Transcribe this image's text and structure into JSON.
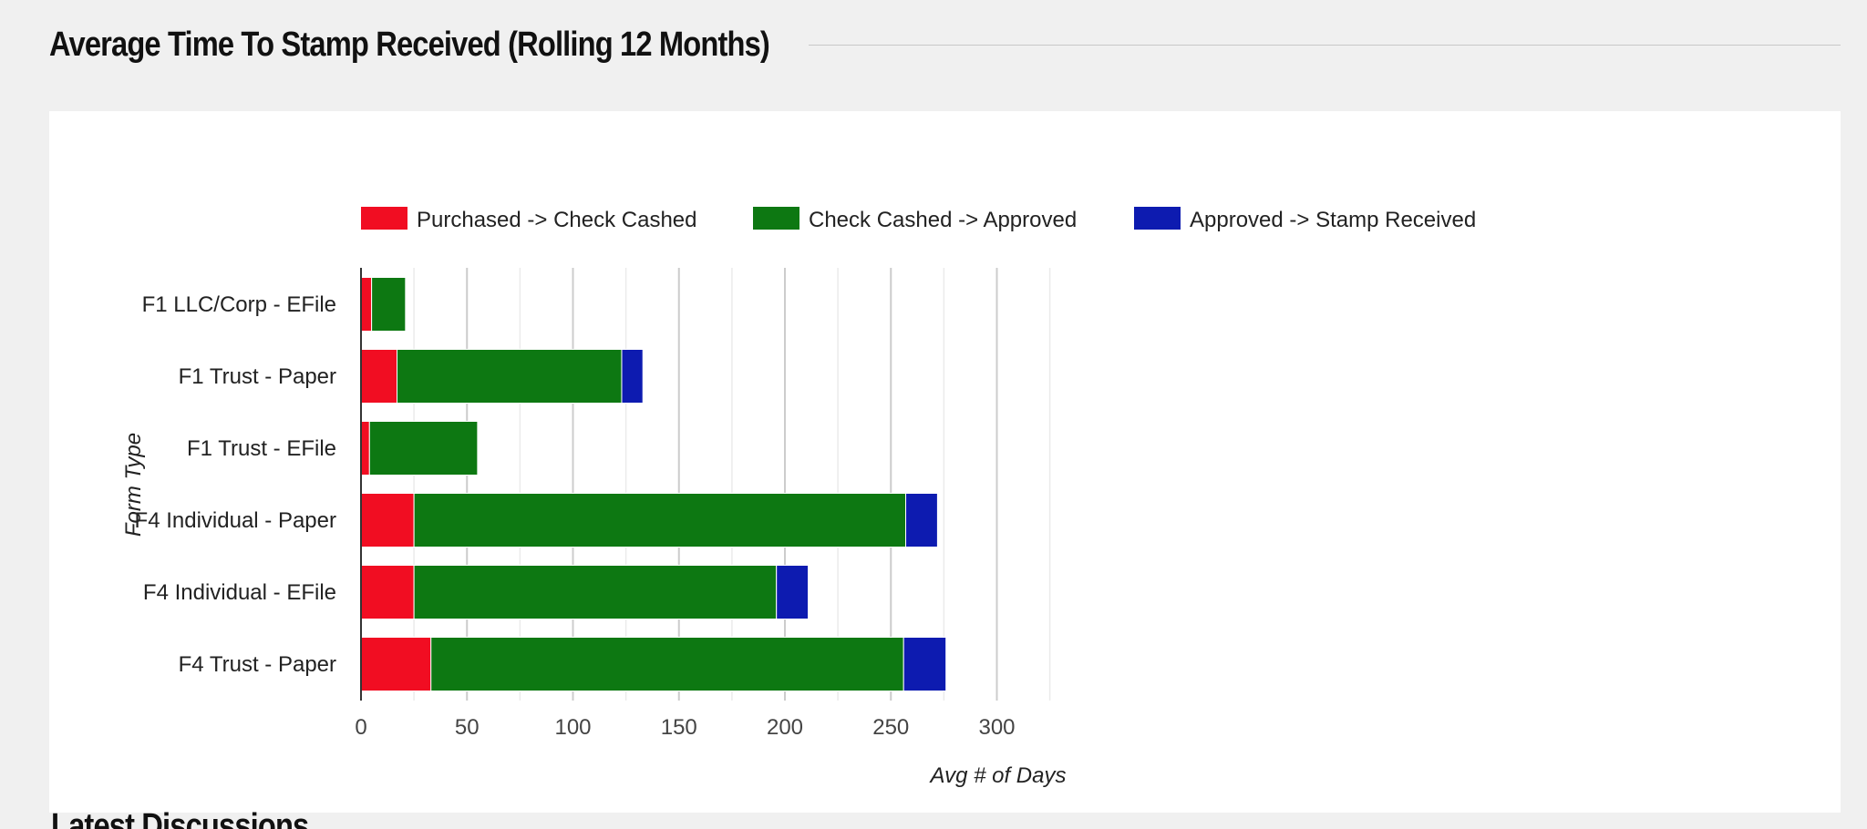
{
  "page": {
    "section_title": "Average Time To Stamp Received (Rolling 12 Months)",
    "next_section_title": "Latest Discussions"
  },
  "chart_data": {
    "type": "bar",
    "orientation": "horizontal",
    "stacked": true,
    "title": "",
    "xlabel": "Avg # of Days",
    "ylabel": "Form Type",
    "xlim": [
      0,
      340
    ],
    "xticks": [
      0,
      50,
      100,
      150,
      200,
      250,
      300
    ],
    "grid": true,
    "legend_position": "top",
    "categories": [
      "F1 LLC/Corp - EFile",
      "F1 Trust - Paper",
      "F1 Trust - EFile",
      "F4 Individual - Paper",
      "F4 Individual - EFile",
      "F4 Trust - Paper"
    ],
    "series": [
      {
        "name": "Purchased -> Check Cashed",
        "color": "#f10d22",
        "values": [
          5,
          17,
          4,
          25,
          25,
          33
        ]
      },
      {
        "name": "Check Cashed -> Approved",
        "color": "#0d7812",
        "values": [
          16,
          106,
          51,
          232,
          171,
          223
        ]
      },
      {
        "name": "Approved -> Stamp Received",
        "color": "#0d1bb0",
        "values": [
          0,
          10,
          0,
          15,
          15,
          20
        ]
      }
    ]
  }
}
